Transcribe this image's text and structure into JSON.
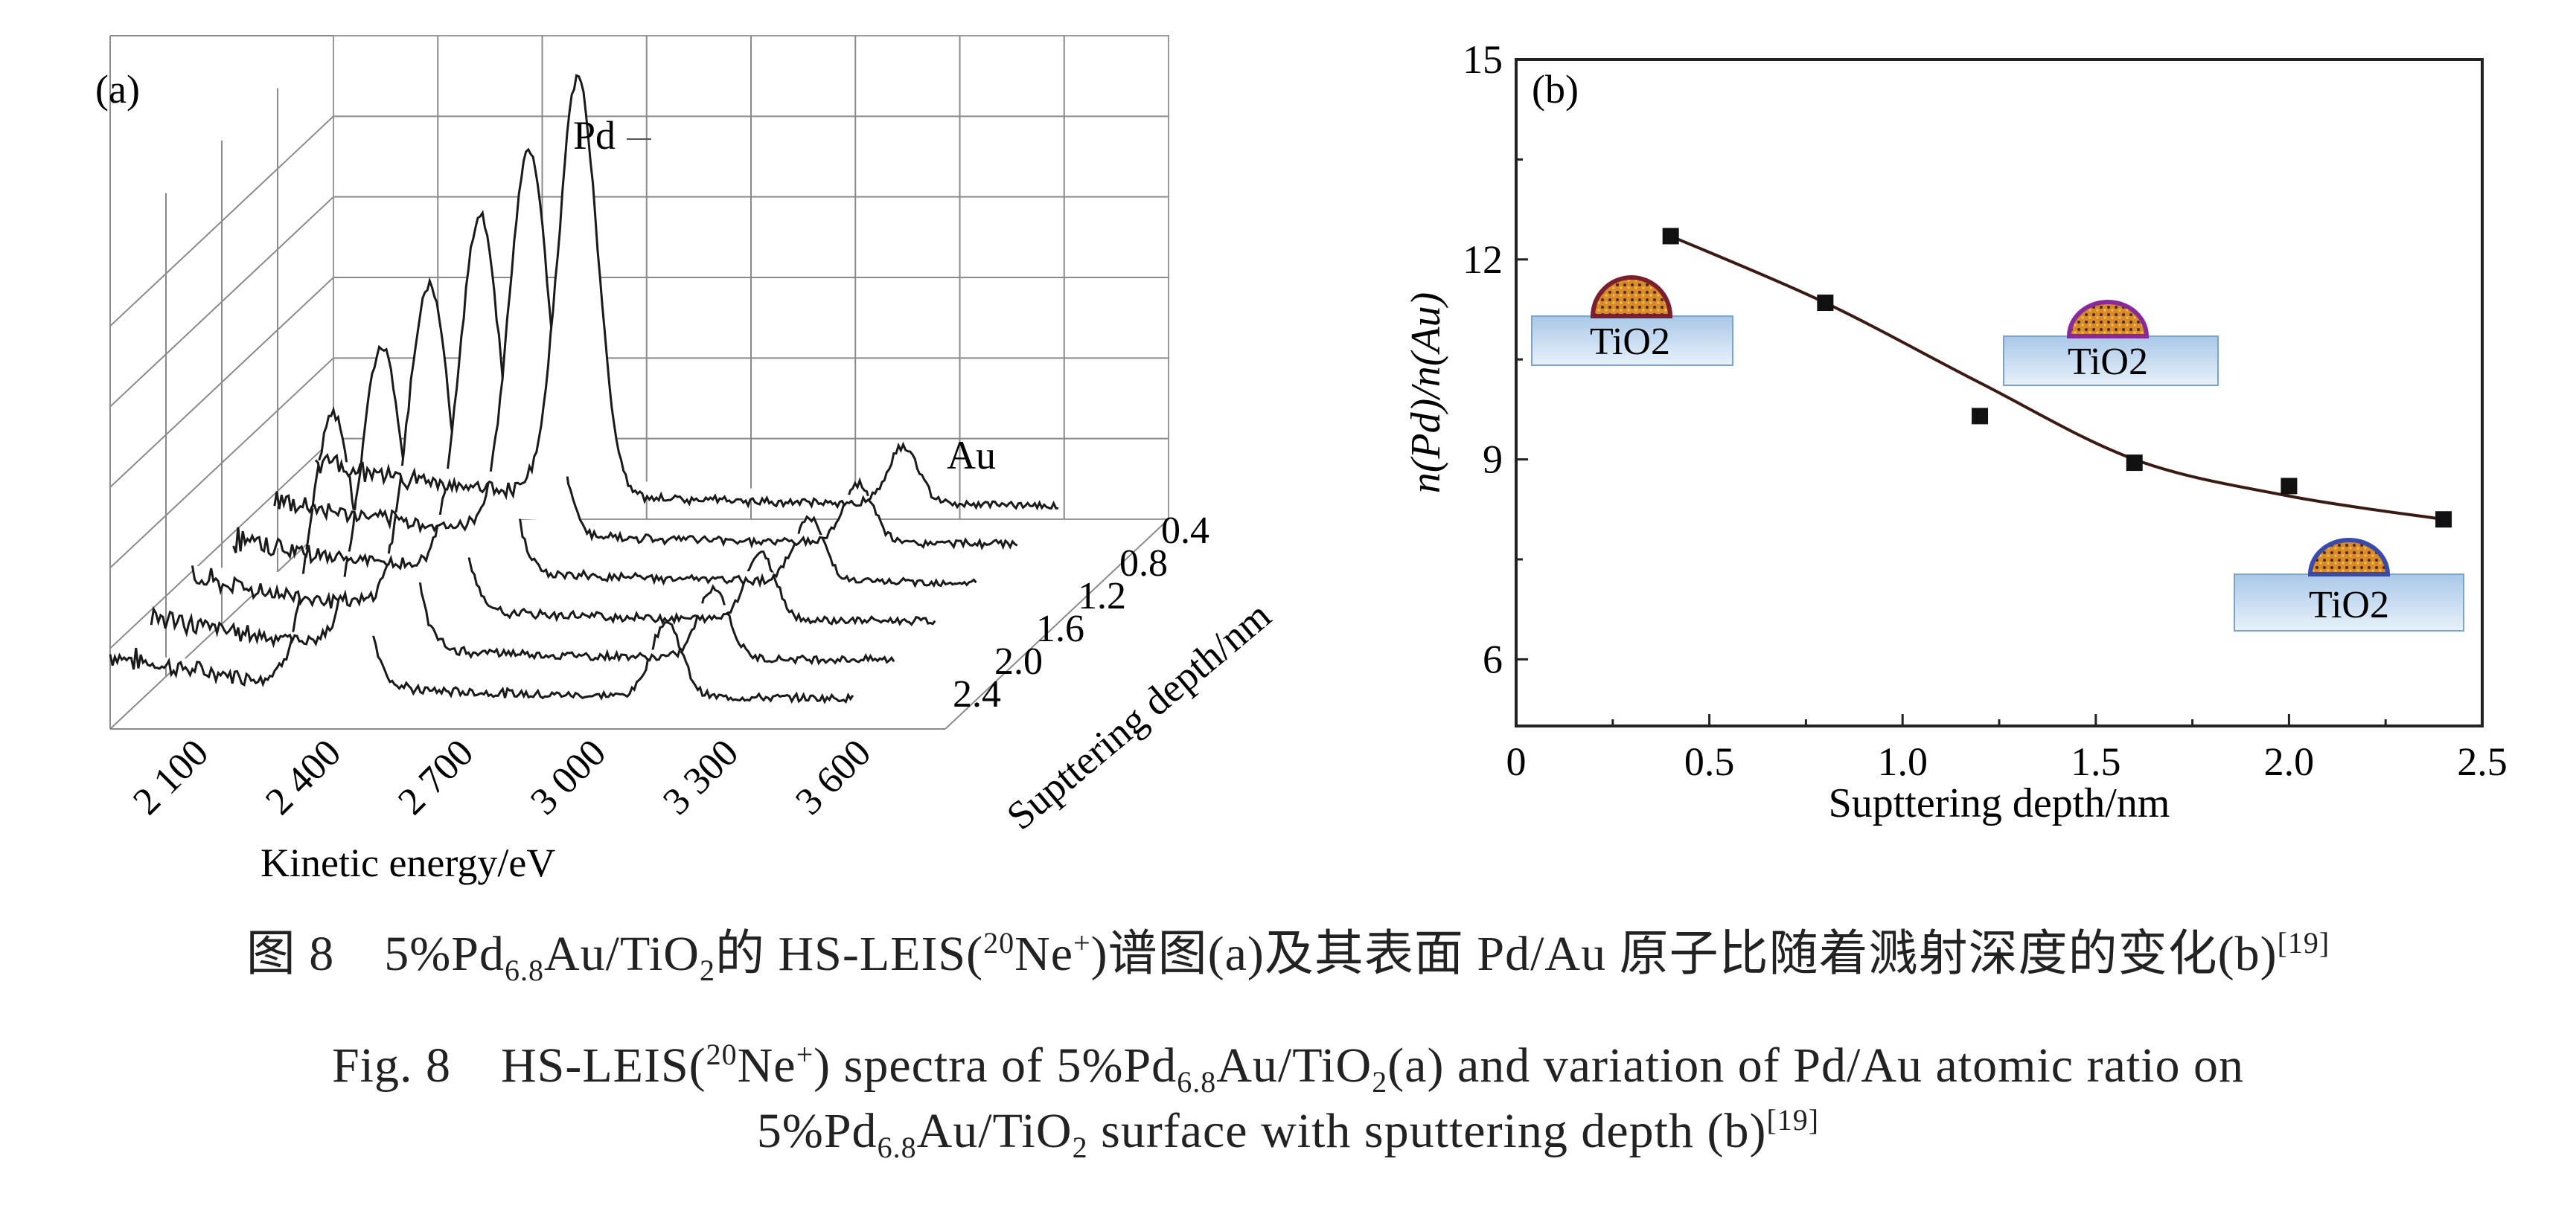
{
  "panel_a": {
    "label": "(a)",
    "peak_labels": [
      "Pd",
      "Au"
    ],
    "x_label": "Kinetic energy/eV",
    "x_ticks": [
      "2 100",
      "2 400",
      "2 700",
      "3 000",
      "3 300",
      "3 600"
    ],
    "depth_label": "Supttering depth/nm",
    "depth_ticks": [
      "0.4",
      "0.8",
      "1.2",
      "1.6",
      "2.0",
      "2.4"
    ]
  },
  "panel_b": {
    "label": "(b)",
    "x_label": "Supttering depth/nm",
    "y_label": "n(Pd)/n(Au)",
    "x_ticks": [
      "0",
      "0.5",
      "1.0",
      "1.5",
      "2.0",
      "2.5"
    ],
    "y_ticks": [
      "6",
      "9",
      "12",
      "15"
    ],
    "insets": [
      "TiO2",
      "TiO2",
      "TiO2"
    ]
  },
  "chart_data": [
    {
      "type": "line",
      "panel": "(a)",
      "x_label": "Kinetic energy/eV",
      "xlim": [
        1950,
        3850
      ],
      "depth_label": "Supttering depth/nm",
      "depths": [
        0.4,
        0.8,
        1.2,
        1.6,
        2.0,
        2.4
      ],
      "peaks": [
        {
          "name": "Pd",
          "energy": [
            2620,
            2600,
            2580,
            2555,
            2540,
            2520
          ],
          "relative_intensity": [
            1.0,
            0.92,
            0.85,
            0.78,
            0.72,
            0.65
          ]
        },
        {
          "name": "Au",
          "energy": [
            3450,
            3440,
            3420,
            3400,
            3385,
            3370
          ],
          "relative_intensity": [
            0.14,
            0.14,
            0.15,
            0.16,
            0.17,
            0.18
          ]
        }
      ]
    },
    {
      "type": "scatter",
      "panel": "(b)",
      "x": [
        0.4,
        0.8,
        1.2,
        1.6,
        2.0,
        2.4
      ],
      "y": [
        12.35,
        11.35,
        9.65,
        8.95,
        8.6,
        8.1
      ],
      "xlabel": "Supttering depth/nm",
      "ylabel": "n(Pd)/n(Au)",
      "xlim": [
        0,
        2.5
      ],
      "ylim": [
        5,
        15
      ],
      "fit_curve": true
    }
  ],
  "caption": {
    "zh": {
      "prefix": "图 8　5%Pd",
      "sub1": "6.8",
      "mid1": "Au/TiO",
      "sub2": "2",
      "mid2": "的 HS-LEIS(",
      "sup1": "20",
      "mid3": "Ne",
      "sup2": "+",
      "rest": ")谱图(a)及其表面 Pd/Au 原子比随着溅射深度的变化(b)",
      "ref": "[19]"
    },
    "en1": {
      "prefix": "Fig. 8　HS-LEIS(",
      "sup1": "20",
      "mid1": "Ne",
      "sup2": "+",
      "mid2": ") spectra of 5%Pd",
      "sub1": "6.8",
      "mid3": "Au/TiO",
      "sub2": "2",
      "rest": "(a) and variation of Pd/Au atomic ratio on"
    },
    "en2": {
      "prefix": "5%Pd",
      "sub1": "6.8",
      "mid1": "Au/TiO",
      "sub2": "2",
      "rest": " surface with sputtering depth (b)",
      "ref": "[19]"
    }
  }
}
